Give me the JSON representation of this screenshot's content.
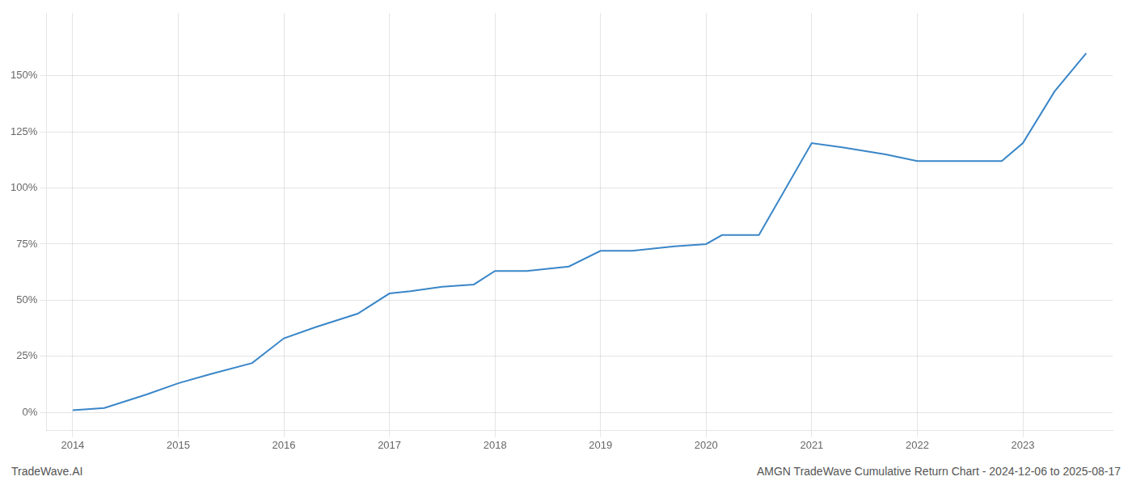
{
  "chart_data": {
    "type": "line",
    "x": [
      2014.0,
      2014.3,
      2014.7,
      2015.0,
      2015.3,
      2015.7,
      2016.0,
      2016.3,
      2016.7,
      2017.0,
      2017.2,
      2017.5,
      2017.8,
      2018.0,
      2018.3,
      2018.7,
      2019.0,
      2019.3,
      2019.7,
      2020.0,
      2020.15,
      2020.5,
      2021.0,
      2021.3,
      2021.7,
      2022.0,
      2022.3,
      2022.6,
      2022.8,
      2023.0,
      2023.3,
      2023.6
    ],
    "values": [
      1,
      2,
      8,
      13,
      17,
      22,
      33,
      38,
      44,
      53,
      54,
      56,
      57,
      63,
      63,
      65,
      72,
      72,
      74,
      75,
      79,
      79,
      120,
      118,
      115,
      112,
      112,
      112,
      112,
      120,
      143,
      160
    ],
    "color": "#3a86c8",
    "xlim": [
      2013.75,
      2023.85
    ],
    "ylim": [
      -8,
      178
    ],
    "xticks": [
      2014,
      2015,
      2016,
      2017,
      2018,
      2019,
      2020,
      2021,
      2022,
      2023
    ],
    "yticks": [
      {
        "value": 0,
        "label": "0%"
      },
      {
        "value": 25,
        "label": "25%"
      },
      {
        "value": 50,
        "label": "50%"
      },
      {
        "value": 75,
        "label": "75%"
      },
      {
        "value": 100,
        "label": "100%"
      },
      {
        "value": 125,
        "label": "125%"
      },
      {
        "value": 150,
        "label": "150%"
      }
    ],
    "grid": true,
    "annotations": [
      "TradeWave.AI",
      "AMGN TradeWave Cumulative Return Chart - 2024-12-06 to 2025-08-17"
    ]
  }
}
